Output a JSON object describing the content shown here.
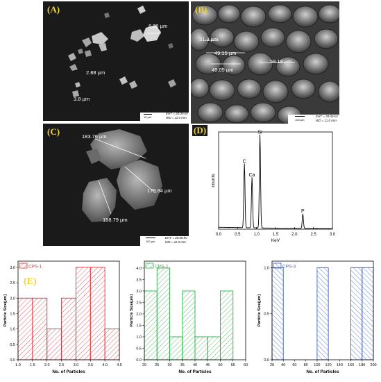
{
  "panels": {
    "A": {
      "label": "(A)",
      "measurements": [
        "6.26 µm",
        "2.88 µm",
        "3.8 µm"
      ],
      "scale": "10 µm",
      "eht": "EHT = 20.00 kV",
      "wd": "WD = 11.0 mm"
    },
    "B": {
      "label": "(B)",
      "measurements": [
        "31.3 µm",
        "49.15 µm",
        "49.05 µm",
        "59.18 µm"
      ],
      "scale": "100 µm",
      "eht": "EHT = 20.00 kV",
      "wd": "WD = 11.0 mm"
    },
    "C": {
      "label": "(C)",
      "measurements": [
        "183.76 µm",
        "179.84 µm",
        "158.79 µm"
      ],
      "scale": "100 µm",
      "eht": "EHT = 20.00 kV",
      "wd": "WD = 11.0 mm"
    },
    "D": {
      "label": "(D)"
    },
    "E": {
      "label": "(E)"
    }
  },
  "chart_data": [
    {
      "type": "line",
      "panel": "D",
      "xlabel": "KeV",
      "ylabel": "counts",
      "xlim": [
        0,
        3
      ],
      "xticks": [
        "0.0",
        "0.5",
        "1.0",
        "1.5",
        "2.0",
        "2.5",
        "3.0"
      ],
      "peaks": [
        {
          "label": "C",
          "x": 0.68,
          "height": 0.66
        },
        {
          "label": "Ca",
          "x": 0.88,
          "height": 0.52
        },
        {
          "label": "Si",
          "x": 1.09,
          "height": 0.96
        },
        {
          "label": "P",
          "x": 2.22,
          "height": 0.15
        }
      ]
    },
    {
      "type": "bar",
      "panel": "E1",
      "legend": "CPS-1",
      "color": "#e0303c",
      "xlabel": "No. of Particles",
      "ylabel": "Particle Size(µm)",
      "xlim": [
        1.0,
        4.5
      ],
      "ylim": [
        0,
        3.2
      ],
      "xticks": [
        "1.0",
        "1.5",
        "2.0",
        "2.5",
        "3.0",
        "3.5",
        "4.0",
        "4.5"
      ],
      "yticks": [
        "0.0",
        "0.5",
        "1.0",
        "1.5",
        "2.0",
        "2.5",
        "3.0"
      ],
      "bin_width": 0.5,
      "bins": [
        1.0,
        1.5,
        2.0,
        2.5,
        3.0,
        3.5,
        4.0
      ],
      "values": [
        2,
        2,
        1,
        2,
        3,
        3,
        1
      ]
    },
    {
      "type": "bar",
      "panel": "E2",
      "legend": "CPS-2",
      "color": "#2fb04a",
      "xlabel": "No. of Particles",
      "ylabel": "Particle Size(µm)",
      "xlim": [
        20,
        60
      ],
      "ylim": [
        0,
        4.3
      ],
      "xticks": [
        "20",
        "25",
        "30",
        "35",
        "40",
        "45",
        "50",
        "55",
        "60"
      ],
      "yticks": [
        "0.0",
        "0.5",
        "1.0",
        "1.5",
        "2.0",
        "2.5",
        "3.0",
        "3.5",
        "4.0"
      ],
      "bin_width": 5,
      "bins": [
        20,
        25,
        30,
        35,
        40,
        45,
        50
      ],
      "values": [
        3,
        4,
        1,
        3,
        1,
        1,
        3
      ]
    },
    {
      "type": "bar",
      "panel": "E3",
      "legend": "CPS-3",
      "color": "#3a5fd0",
      "xlabel": "No. of Particles",
      "ylabel": "Particle Size(µm)",
      "xlim": [
        20,
        200
      ],
      "ylim": [
        0,
        1.07
      ],
      "xticks": [
        "20",
        "40",
        "60",
        "80",
        "100",
        "120",
        "140",
        "160",
        "180",
        "200"
      ],
      "yticks": [
        "0.0",
        "0.5",
        "1.0"
      ],
      "bin_width": 20,
      "bins": [
        20,
        100,
        160,
        180
      ],
      "values": [
        1,
        1,
        1,
        1
      ]
    }
  ]
}
